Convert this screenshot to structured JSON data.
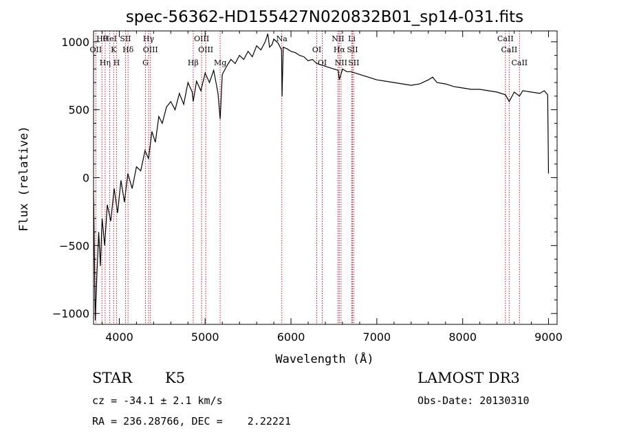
{
  "chart_data": {
    "type": "line",
    "title": "spec-56362-HD155427N020832B01_sp14-031.fits",
    "xlabel": "Wavelength (Å)",
    "ylabel": "Flux (relative)",
    "xlim": [
      3700,
      9100
    ],
    "ylim": [
      -1080,
      1080
    ],
    "x_ticks": [
      4000,
      5000,
      6000,
      7000,
      8000,
      9000
    ],
    "y_ticks": [
      -1000,
      -500,
      0,
      500,
      1000
    ],
    "series": [
      {
        "name": "spectrum",
        "x": [
          3700,
          3720,
          3740,
          3760,
          3780,
          3800,
          3830,
          3860,
          3900,
          3940,
          3980,
          4020,
          4060,
          4100,
          4150,
          4200,
          4250,
          4300,
          4340,
          4380,
          4420,
          4460,
          4500,
          4550,
          4600,
          4650,
          4700,
          4750,
          4800,
          4850,
          4861,
          4900,
          4950,
          5000,
          5050,
          5100,
          5150,
          5175,
          5200,
          5250,
          5300,
          5350,
          5400,
          5450,
          5500,
          5550,
          5600,
          5650,
          5700,
          5730,
          5750,
          5780,
          5800,
          5850,
          5890,
          5896,
          5910,
          5950,
          6000,
          6050,
          6100,
          6150,
          6200,
          6250,
          6300,
          6350,
          6400,
          6450,
          6500,
          6550,
          6563,
          6600,
          6650,
          6700,
          6750,
          6800,
          6900,
          7000,
          7100,
          7200,
          7300,
          7400,
          7500,
          7600,
          7650,
          7700,
          7800,
          7900,
          8000,
          8100,
          8200,
          8300,
          8400,
          8498,
          8542,
          8600,
          8662,
          8700,
          8800,
          8900,
          8950,
          8990,
          9000
        ],
        "y": [
          -100,
          -1050,
          -700,
          -400,
          -650,
          -300,
          -500,
          -200,
          -320,
          -80,
          -260,
          -20,
          -180,
          30,
          -80,
          80,
          50,
          200,
          140,
          340,
          260,
          450,
          400,
          520,
          560,
          500,
          620,
          540,
          700,
          630,
          560,
          710,
          640,
          770,
          700,
          790,
          620,
          430,
          760,
          820,
          870,
          840,
          900,
          870,
          930,
          890,
          970,
          940,
          1000,
          1060,
          960,
          980,
          1020,
          990,
          940,
          600,
          960,
          950,
          930,
          920,
          900,
          890,
          860,
          870,
          840,
          830,
          820,
          810,
          800,
          790,
          720,
          800,
          780,
          780,
          770,
          760,
          740,
          720,
          710,
          700,
          690,
          680,
          690,
          720,
          740,
          700,
          690,
          670,
          660,
          650,
          650,
          640,
          630,
          610,
          560,
          630,
          600,
          640,
          630,
          620,
          640,
          610,
          30
        ]
      }
    ],
    "lines": [
      {
        "name": "Hθ",
        "x": 3798
      },
      {
        "name": "OII",
        "x": 3727
      },
      {
        "name": "Hη",
        "x": 3835
      },
      {
        "name": "HeI",
        "x": 3889
      },
      {
        "name": "K",
        "x": 3934
      },
      {
        "name": "H",
        "x": 3969
      },
      {
        "name": "SII",
        "x": 4072
      },
      {
        "name": "Hδ",
        "x": 4102
      },
      {
        "name": "G",
        "x": 4305
      },
      {
        "name": "Hγ",
        "x": 4341
      },
      {
        "name": "OIII",
        "x": 4363
      },
      {
        "name": "Hβ",
        "x": 4861
      },
      {
        "name": "OIII",
        "x": 4959
      },
      {
        "name": "OIII",
        "x": 5007
      },
      {
        "name": "Mg",
        "x": 5175
      },
      {
        "name": "Na",
        "x": 5893
      },
      {
        "name": "OI",
        "x": 6300
      },
      {
        "name": "OI",
        "x": 6364
      },
      {
        "name": "NII",
        "x": 6548
      },
      {
        "name": "Hα",
        "x": 6563
      },
      {
        "name": "NII",
        "x": 6583
      },
      {
        "name": "Li",
        "x": 6708
      },
      {
        "name": "SII",
        "x": 6716
      },
      {
        "name": "SII",
        "x": 6731
      },
      {
        "name": "CaII",
        "x": 8498
      },
      {
        "name": "CaII",
        "x": 8542
      },
      {
        "name": "CaII",
        "x": 8662
      }
    ]
  },
  "info": {
    "object_class": "STAR",
    "subclass": "K5",
    "survey": "LAMOST DR3",
    "cz": "cz = -34.1 ± 2.1 km/s",
    "obs_date": "Obs-Date: 20130310",
    "coords": "RA = 236.28766, DEC =    2.22221"
  }
}
